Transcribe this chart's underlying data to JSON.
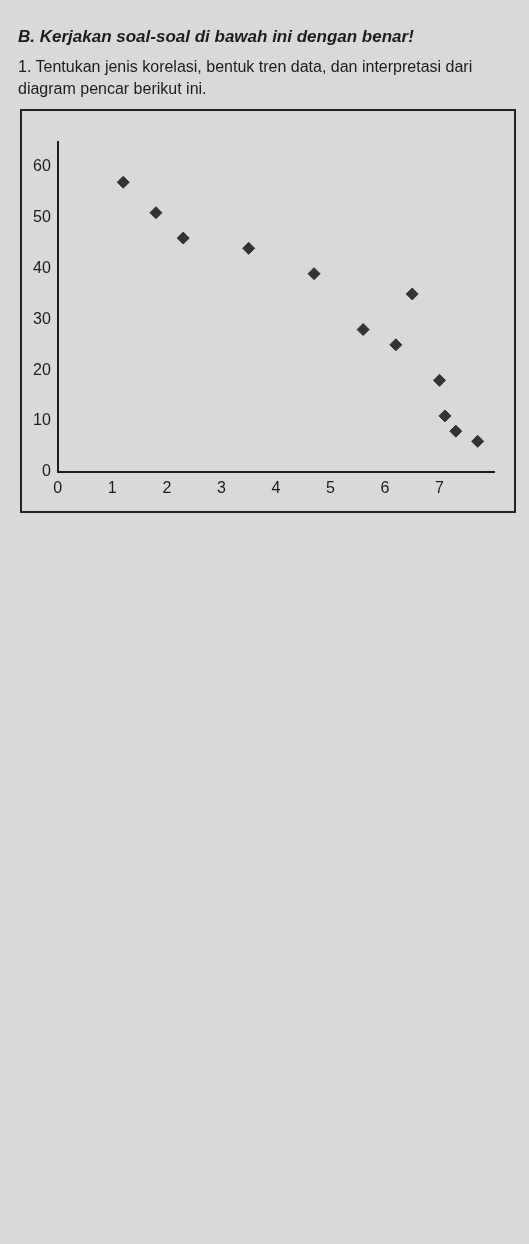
{
  "chart_data": {
    "type": "scatter",
    "title": "B. Kerjakan soal-soal di bawah ini dengan benar!",
    "subtitle": "1. Tentukan jenis korelasi, bentuk tren data, dan interpretasi dari diagram pencar berikut ini.",
    "x": [
      1.2,
      1.8,
      2.3,
      3.5,
      4.7,
      5.6,
      6.2,
      6.5,
      7.0,
      7.1,
      7.3,
      7.7
    ],
    "values": [
      57,
      51,
      46,
      44,
      39,
      28,
      25,
      35,
      18,
      11,
      8,
      6
    ],
    "color": "#333333",
    "marker": "diamond",
    "xlim": [
      0,
      8
    ],
    "xticks": [
      0,
      1,
      2,
      3,
      4,
      5,
      6,
      7
    ],
    "ylim": [
      0,
      65
    ],
    "yticks": [
      0,
      10,
      20,
      30,
      40,
      50,
      60
    ]
  }
}
